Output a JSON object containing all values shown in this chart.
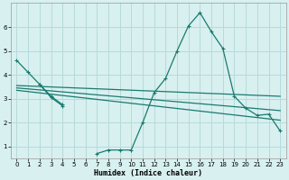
{
  "bg_color": "#d8f0f0",
  "grid_color": "#b8dada",
  "line_color": "#1a7a6e",
  "xlabel": "Humidex (Indice chaleur)",
  "xlim": [
    -0.5,
    23.5
  ],
  "ylim": [
    0.5,
    7.0
  ],
  "yticks": [
    1,
    2,
    3,
    4,
    5,
    6
  ],
  "xticks": [
    0,
    1,
    2,
    3,
    4,
    5,
    6,
    7,
    8,
    9,
    10,
    11,
    12,
    13,
    14,
    15,
    16,
    17,
    18,
    19,
    20,
    21,
    22,
    23
  ],
  "series0_x": [
    0,
    1,
    2,
    3,
    4,
    7,
    8,
    9,
    10,
    11,
    12,
    13,
    14,
    15,
    16,
    17,
    18,
    19,
    20,
    21,
    22,
    23
  ],
  "series0_y": [
    4.6,
    4.1,
    3.6,
    3.05,
    2.7,
    0.7,
    0.85,
    0.85,
    0.85,
    2.0,
    3.25,
    3.85,
    5.0,
    6.05,
    6.6,
    5.8,
    5.1,
    3.1,
    2.6,
    2.3,
    2.35,
    1.65
  ],
  "series0_breaks": [
    4,
    7
  ],
  "series1_x": [
    2,
    3,
    4
  ],
  "series1_y": [
    3.6,
    3.1,
    2.75
  ],
  "trend_lines": [
    {
      "x": [
        0,
        23
      ],
      "y": [
        3.55,
        3.1
      ]
    },
    {
      "x": [
        0,
        23
      ],
      "y": [
        3.45,
        2.5
      ]
    },
    {
      "x": [
        0,
        23
      ],
      "y": [
        3.35,
        2.1
      ]
    }
  ]
}
